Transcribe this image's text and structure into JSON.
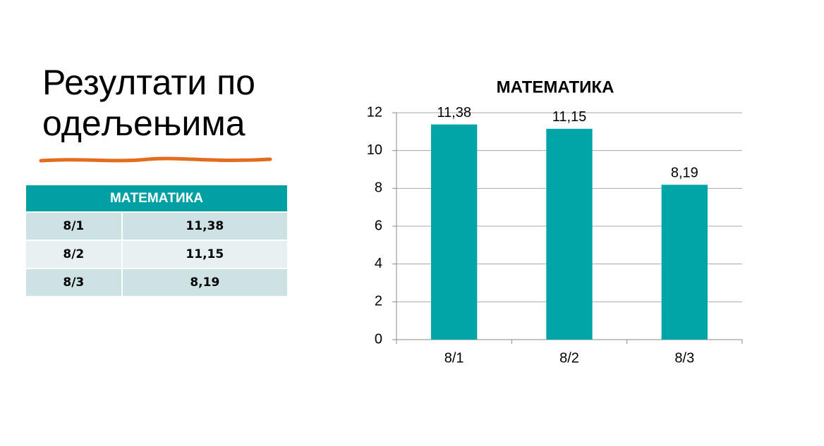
{
  "title": "Резултати по одељењима",
  "table": {
    "header": "МАТЕМАТИКА",
    "rows": [
      [
        "8/1",
        "11,38"
      ],
      [
        "8/2",
        "11,15"
      ],
      [
        "8/3",
        "8,19"
      ]
    ]
  },
  "chart_data": {
    "type": "bar",
    "title": "МАТЕМАТИКА",
    "categories": [
      "8/1",
      "8/2",
      "8/3"
    ],
    "values": [
      11.38,
      11.15,
      8.19
    ],
    "value_labels": [
      "11,38",
      "11,15",
      "8,19"
    ],
    "color": "#00a5a8",
    "ylim": [
      0,
      12
    ],
    "yticks": [
      0,
      2,
      4,
      6,
      8,
      10,
      12
    ],
    "grid": true
  }
}
